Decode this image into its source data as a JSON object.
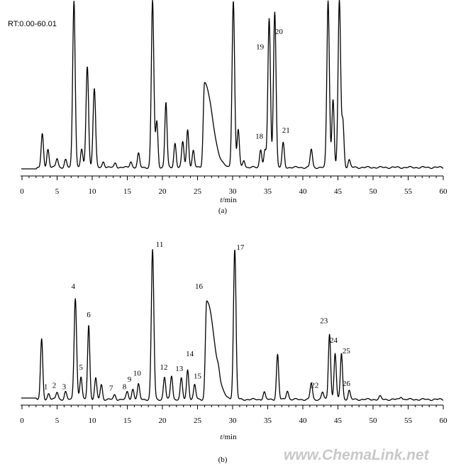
{
  "header": {
    "range_label": "RT:0.00-60.01"
  },
  "watermark": "www.ChemaLink.net",
  "chart_data": [
    {
      "type": "line",
      "panel": "(a)",
      "xlabel_italic": "t",
      "xlabel_unit": "/min",
      "xlim": [
        0,
        60
      ],
      "ticks": [
        0,
        5,
        10,
        15,
        20,
        25,
        30,
        35,
        40,
        45,
        50,
        55,
        60
      ],
      "tick_labels": [
        "0",
        "5",
        "10",
        "15",
        "20",
        "25",
        "30",
        "35",
        "40",
        "45",
        "50",
        "55",
        "60"
      ],
      "grid": false,
      "peaks": [
        {
          "t": 2.9,
          "h": 0.22
        },
        {
          "t": 3.7,
          "h": 0.12
        },
        {
          "t": 5.0,
          "h": 0.06
        },
        {
          "t": 6.2,
          "h": 0.05
        },
        {
          "t": 7.4,
          "h": 1.1
        },
        {
          "t": 8.5,
          "h": 0.12
        },
        {
          "t": 9.3,
          "h": 0.67
        },
        {
          "t": 10.3,
          "h": 0.52
        },
        {
          "t": 11.6,
          "h": 0.04
        },
        {
          "t": 13.3,
          "h": 0.03
        },
        {
          "t": 15.5,
          "h": 0.04
        },
        {
          "t": 16.6,
          "h": 0.09
        },
        {
          "t": 18.6,
          "h": 1.1
        },
        {
          "t": 19.2,
          "h": 0.3
        },
        {
          "t": 20.5,
          "h": 0.43
        },
        {
          "t": 21.8,
          "h": 0.16
        },
        {
          "t": 22.9,
          "h": 0.17
        },
        {
          "t": 23.6,
          "h": 0.25
        },
        {
          "t": 24.4,
          "h": 0.11
        },
        {
          "t": 26.0,
          "h": 0.56
        },
        {
          "t": 30.1,
          "h": 1.1
        },
        {
          "t": 30.8,
          "h": 0.25
        },
        {
          "t": 31.6,
          "h": 0.05
        },
        {
          "t": 34.0,
          "h": 0.12
        },
        {
          "t": 34.6,
          "h": 0.11
        },
        {
          "t": 35.2,
          "h": 0.98
        },
        {
          "t": 36.0,
          "h": 1.03
        },
        {
          "t": 37.2,
          "h": 0.16
        },
        {
          "t": 41.2,
          "h": 0.12
        },
        {
          "t": 43.6,
          "h": 1.1
        },
        {
          "t": 44.3,
          "h": 0.45
        },
        {
          "t": 45.2,
          "h": 1.1
        },
        {
          "t": 45.7,
          "h": 0.3
        },
        {
          "t": 46.6,
          "h": 0.05
        }
      ],
      "annotations": [
        {
          "text": "18",
          "t": 33.8,
          "h": 0.17
        },
        {
          "text": "19",
          "t": 33.9,
          "h": 0.76
        },
        {
          "text": "20",
          "t": 36.6,
          "h": 0.86
        },
        {
          "text": "21",
          "t": 37.6,
          "h": 0.21
        }
      ]
    },
    {
      "type": "line",
      "panel": "(b)",
      "xlabel_italic": "t",
      "xlabel_unit": "/min",
      "xlim": [
        0,
        60
      ],
      "ticks": [
        0,
        5,
        10,
        15,
        20,
        25,
        30,
        35,
        40,
        45,
        50,
        55,
        60
      ],
      "tick_labels": [
        "0",
        "5",
        "10",
        "15",
        "20",
        "25",
        "30",
        "35",
        "40",
        "45",
        "50",
        "55",
        "60"
      ],
      "grid": false,
      "peaks": [
        {
          "t": 1.2,
          "h": 0.03
        },
        {
          "t": 2.8,
          "h": 0.4
        },
        {
          "t": 3.8,
          "h": 0.04
        },
        {
          "t": 5.0,
          "h": 0.05
        },
        {
          "t": 6.2,
          "h": 0.05
        },
        {
          "t": 7.6,
          "h": 0.68
        },
        {
          "t": 8.4,
          "h": 0.15
        },
        {
          "t": 9.5,
          "h": 0.5
        },
        {
          "t": 10.5,
          "h": 0.14
        },
        {
          "t": 11.3,
          "h": 0.1
        },
        {
          "t": 13.2,
          "h": 0.03
        },
        {
          "t": 15.0,
          "h": 0.05
        },
        {
          "t": 15.8,
          "h": 0.07
        },
        {
          "t": 16.6,
          "h": 0.1
        },
        {
          "t": 18.6,
          "h": 1.0
        },
        {
          "t": 20.3,
          "h": 0.15
        },
        {
          "t": 21.3,
          "h": 0.16
        },
        {
          "t": 22.7,
          "h": 0.14
        },
        {
          "t": 23.6,
          "h": 0.2
        },
        {
          "t": 24.6,
          "h": 0.1
        },
        {
          "t": 26.3,
          "h": 0.66
        },
        {
          "t": 28.0,
          "h": 0.04
        },
        {
          "t": 30.3,
          "h": 1.0
        },
        {
          "t": 34.5,
          "h": 0.05
        },
        {
          "t": 36.4,
          "h": 0.3
        },
        {
          "t": 37.8,
          "h": 0.06
        },
        {
          "t": 41.2,
          "h": 0.11
        },
        {
          "t": 42.8,
          "h": 0.05
        },
        {
          "t": 43.8,
          "h": 0.44
        },
        {
          "t": 44.6,
          "h": 0.31
        },
        {
          "t": 45.5,
          "h": 0.31
        },
        {
          "t": 46.6,
          "h": 0.06
        },
        {
          "t": 51.0,
          "h": 0.02
        },
        {
          "t": 54.0,
          "h": 0.02
        }
      ],
      "annotations": [
        {
          "text": "1",
          "t": 3.4,
          "h": 0.05
        },
        {
          "text": "2",
          "t": 4.6,
          "h": 0.06
        },
        {
          "text": "3",
          "t": 6.0,
          "h": 0.05
        },
        {
          "text": "4",
          "t": 7.3,
          "h": 0.72
        },
        {
          "text": "5",
          "t": 8.4,
          "h": 0.18
        },
        {
          "text": "6",
          "t": 9.5,
          "h": 0.53
        },
        {
          "text": "7",
          "t": 12.7,
          "h": 0.04
        },
        {
          "text": "8",
          "t": 14.6,
          "h": 0.05
        },
        {
          "text": "9",
          "t": 15.3,
          "h": 0.1
        },
        {
          "text": "10",
          "t": 16.4,
          "h": 0.14
        },
        {
          "text": "11",
          "t": 19.6,
          "h": 1.0
        },
        {
          "text": "12",
          "t": 20.2,
          "h": 0.18
        },
        {
          "text": "13",
          "t": 22.4,
          "h": 0.17
        },
        {
          "text": "14",
          "t": 23.9,
          "h": 0.27
        },
        {
          "text": "15",
          "t": 25.0,
          "h": 0.12
        },
        {
          "text": "16",
          "t": 25.2,
          "h": 0.72
        },
        {
          "text": "17",
          "t": 31.1,
          "h": 0.98
        },
        {
          "text": "22",
          "t": 41.7,
          "h": 0.06
        },
        {
          "text": "23",
          "t": 43.0,
          "h": 0.49
        },
        {
          "text": "24",
          "t": 44.4,
          "h": 0.36
        },
        {
          "text": "25",
          "t": 46.2,
          "h": 0.29
        },
        {
          "text": "26",
          "t": 46.2,
          "h": 0.07
        }
      ]
    }
  ]
}
